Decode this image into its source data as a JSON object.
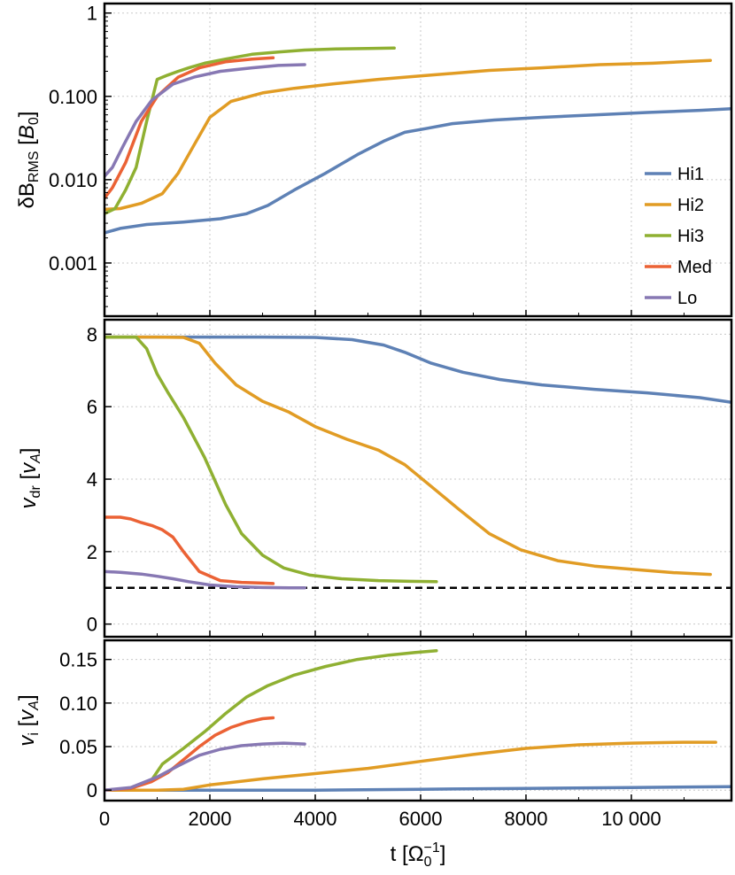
{
  "chart_data": [
    {
      "type": "line",
      "panel": "top",
      "scale": "log",
      "ylabel": "δB_RMS [B_0]",
      "ylabel_main": "δB",
      "ylabel_sub": "RMS",
      "ylabel_unit_open": " [",
      "ylabel_unit": "B",
      "ylabel_unit_sub": "0",
      "ylabel_unit_close": "]",
      "ylim": [
        0.00023,
        1.3
      ],
      "yticks": [
        0.001,
        0.01,
        0.1,
        1
      ],
      "yticklabels": [
        "0.001",
        "0.010",
        "0.100",
        "1"
      ],
      "legend_position": "right",
      "series": [
        {
          "name": "Hi1",
          "color": "#5e81b5",
          "x": [
            0,
            300,
            800,
            1500,
            2200,
            2700,
            3100,
            3600,
            4200,
            4800,
            5300,
            5700,
            6100,
            6600,
            7400,
            8300,
            9300,
            10300,
            11300,
            11900
          ],
          "y": [
            0.0023,
            0.0026,
            0.0029,
            0.0031,
            0.0034,
            0.0039,
            0.0049,
            0.0075,
            0.012,
            0.02,
            0.029,
            0.037,
            0.041,
            0.047,
            0.052,
            0.056,
            0.06,
            0.064,
            0.068,
            0.071
          ]
        },
        {
          "name": "Hi2",
          "color": "#e19c24",
          "x": [
            0,
            300,
            700,
            1100,
            1400,
            1700,
            2000,
            2400,
            3000,
            3600,
            4300,
            5200,
            6200,
            7300,
            8300,
            9400,
            10400,
            11500
          ],
          "y": [
            0.0044,
            0.0045,
            0.0052,
            0.0068,
            0.012,
            0.026,
            0.056,
            0.087,
            0.11,
            0.125,
            0.14,
            0.16,
            0.18,
            0.205,
            0.22,
            0.24,
            0.25,
            0.27
          ]
        },
        {
          "name": "Hi3",
          "color": "#8fb032",
          "x": [
            0,
            200,
            400,
            600,
            800,
            1000,
            1200,
            1400,
            1600,
            1900,
            2300,
            2800,
            3300,
            3800,
            4400,
            5000,
            5500
          ],
          "y": [
            0.0039,
            0.0045,
            0.0075,
            0.014,
            0.05,
            0.16,
            0.18,
            0.2,
            0.22,
            0.25,
            0.28,
            0.32,
            0.34,
            0.36,
            0.37,
            0.375,
            0.38
          ]
        },
        {
          "name": "Med",
          "color": "#eb6235",
          "x": [
            0,
            150,
            400,
            700,
            1000,
            1400,
            1800,
            2300,
            2800,
            3200
          ],
          "y": [
            0.006,
            0.008,
            0.016,
            0.05,
            0.1,
            0.17,
            0.22,
            0.26,
            0.28,
            0.29
          ]
        },
        {
          "name": "Lo",
          "color": "#8778b3",
          "x": [
            0,
            150,
            350,
            600,
            900,
            1300,
            1700,
            2200,
            2800,
            3300,
            3800
          ],
          "y": [
            0.011,
            0.014,
            0.025,
            0.05,
            0.09,
            0.14,
            0.17,
            0.2,
            0.22,
            0.235,
            0.24
          ]
        }
      ]
    },
    {
      "type": "line",
      "panel": "middle",
      "ylabel": "v_dr [v_A]",
      "ylabel_main": "v",
      "ylabel_sub": "dr",
      "ylabel_unit_open": " [",
      "ylabel_unit": "v",
      "ylabel_unit_sub": "A",
      "ylabel_unit_close": "]",
      "ylim": [
        -0.35,
        8.4
      ],
      "yticks": [
        0,
        2,
        4,
        6,
        8
      ],
      "yticklabels": [
        "0",
        "2",
        "4",
        "6",
        "8"
      ],
      "reference_line": 1,
      "series": [
        {
          "name": "Hi1",
          "color": "#5e81b5",
          "x": [
            0,
            1000,
            2000,
            3000,
            4000,
            4700,
            5300,
            5700,
            6200,
            6800,
            7500,
            8300,
            9300,
            10300,
            11300,
            11900
          ],
          "y": [
            7.92,
            7.92,
            7.92,
            7.92,
            7.91,
            7.85,
            7.7,
            7.5,
            7.2,
            6.95,
            6.75,
            6.6,
            6.48,
            6.38,
            6.25,
            6.12
          ]
        },
        {
          "name": "Hi2",
          "color": "#e19c24",
          "x": [
            0,
            1000,
            1500,
            1800,
            2100,
            2500,
            3000,
            3500,
            4000,
            4600,
            5200,
            5700,
            6200,
            6700,
            7300,
            7900,
            8600,
            9300,
            10100,
            10800,
            11500
          ],
          "y": [
            7.92,
            7.92,
            7.91,
            7.75,
            7.2,
            6.6,
            6.15,
            5.85,
            5.45,
            5.1,
            4.8,
            4.4,
            3.8,
            3.2,
            2.5,
            2.05,
            1.75,
            1.6,
            1.5,
            1.42,
            1.37
          ]
        },
        {
          "name": "Hi3",
          "color": "#8fb032",
          "x": [
            0,
            600,
            800,
            1000,
            1200,
            1500,
            1900,
            2300,
            2600,
            3000,
            3400,
            3900,
            4500,
            5200,
            5800,
            6300
          ],
          "y": [
            7.92,
            7.92,
            7.6,
            6.9,
            6.4,
            5.7,
            4.6,
            3.3,
            2.5,
            1.9,
            1.55,
            1.35,
            1.25,
            1.2,
            1.18,
            1.17
          ]
        },
        {
          "name": "Med",
          "color": "#eb6235",
          "x": [
            0,
            300,
            500,
            700,
            900,
            1100,
            1300,
            1500,
            1800,
            2200,
            2600,
            3000,
            3200
          ],
          "y": [
            2.95,
            2.95,
            2.9,
            2.8,
            2.72,
            2.6,
            2.4,
            2.0,
            1.45,
            1.2,
            1.15,
            1.13,
            1.12
          ]
        },
        {
          "name": "Lo",
          "color": "#8778b3",
          "x": [
            0,
            300,
            700,
            1000,
            1300,
            1600,
            2000,
            2500,
            3000,
            3500,
            3800
          ],
          "y": [
            1.45,
            1.43,
            1.38,
            1.32,
            1.25,
            1.17,
            1.08,
            1.03,
            1.01,
            1.0,
            1.0
          ]
        }
      ]
    },
    {
      "type": "line",
      "panel": "bottom",
      "ylabel": "v_i [v_A]",
      "ylabel_main": "v",
      "ylabel_sub": "i",
      "ylabel_unit_open": " [",
      "ylabel_unit": "v",
      "ylabel_unit_sub": "A",
      "ylabel_unit_close": "]",
      "ylim": [
        -0.012,
        0.172
      ],
      "yticks": [
        0,
        0.05,
        0.1,
        0.15
      ],
      "yticklabels": [
        "0",
        "0.05",
        "0.10",
        "0.15"
      ],
      "xlabel": "t [Ω_0^-1]",
      "xlabel_main": "t [Ω",
      "xlabel_sub": "0",
      "xlabel_sup": "−1",
      "xlabel_close": "]",
      "xlim": [
        0,
        11900
      ],
      "xticks": [
        0,
        2000,
        4000,
        6000,
        8000,
        10000
      ],
      "xticklabels": [
        "0",
        "2000",
        "4000",
        "6000",
        "8000",
        "10 000"
      ],
      "series": [
        {
          "name": "Hi1",
          "color": "#5e81b5",
          "x": [
            0,
            2000,
            4000,
            6000,
            8000,
            10000,
            11900
          ],
          "y": [
            0,
            0,
            0,
            0.001,
            0.002,
            0.003,
            0.004
          ]
        },
        {
          "name": "Hi2",
          "color": "#e19c24",
          "x": [
            0,
            1000,
            1500,
            2000,
            3000,
            4000,
            5000,
            6000,
            7000,
            8000,
            9000,
            10000,
            11000,
            11600
          ],
          "y": [
            0,
            0,
            0.001,
            0.006,
            0.013,
            0.019,
            0.025,
            0.033,
            0.041,
            0.048,
            0.052,
            0.054,
            0.055,
            0.055
          ]
        },
        {
          "name": "Hi3",
          "color": "#8fb032",
          "x": [
            0,
            500,
            900,
            1100,
            1500,
            1900,
            2300,
            2700,
            3100,
            3600,
            4200,
            4800,
            5400,
            5900,
            6300
          ],
          "y": [
            0,
            0.002,
            0.012,
            0.03,
            0.048,
            0.067,
            0.088,
            0.107,
            0.12,
            0.132,
            0.142,
            0.15,
            0.155,
            0.158,
            0.16
          ]
        },
        {
          "name": "Med",
          "color": "#eb6235",
          "x": [
            0,
            500,
            900,
            1200,
            1500,
            1800,
            2100,
            2400,
            2700,
            3000,
            3200
          ],
          "y": [
            0,
            0.002,
            0.01,
            0.02,
            0.035,
            0.05,
            0.063,
            0.072,
            0.078,
            0.082,
            0.083
          ]
        },
        {
          "name": "Lo",
          "color": "#8778b3",
          "x": [
            0,
            500,
            1000,
            1400,
            1800,
            2200,
            2600,
            3000,
            3400,
            3800
          ],
          "y": [
            0,
            0.003,
            0.015,
            0.028,
            0.04,
            0.047,
            0.051,
            0.053,
            0.054,
            0.053
          ]
        }
      ]
    }
  ],
  "legend": [
    {
      "name": "Hi1",
      "color": "#5e81b5"
    },
    {
      "name": "Hi2",
      "color": "#e19c24"
    },
    {
      "name": "Hi3",
      "color": "#8fb032"
    },
    {
      "name": "Med",
      "color": "#eb6235"
    },
    {
      "name": "Lo",
      "color": "#8778b3"
    }
  ]
}
